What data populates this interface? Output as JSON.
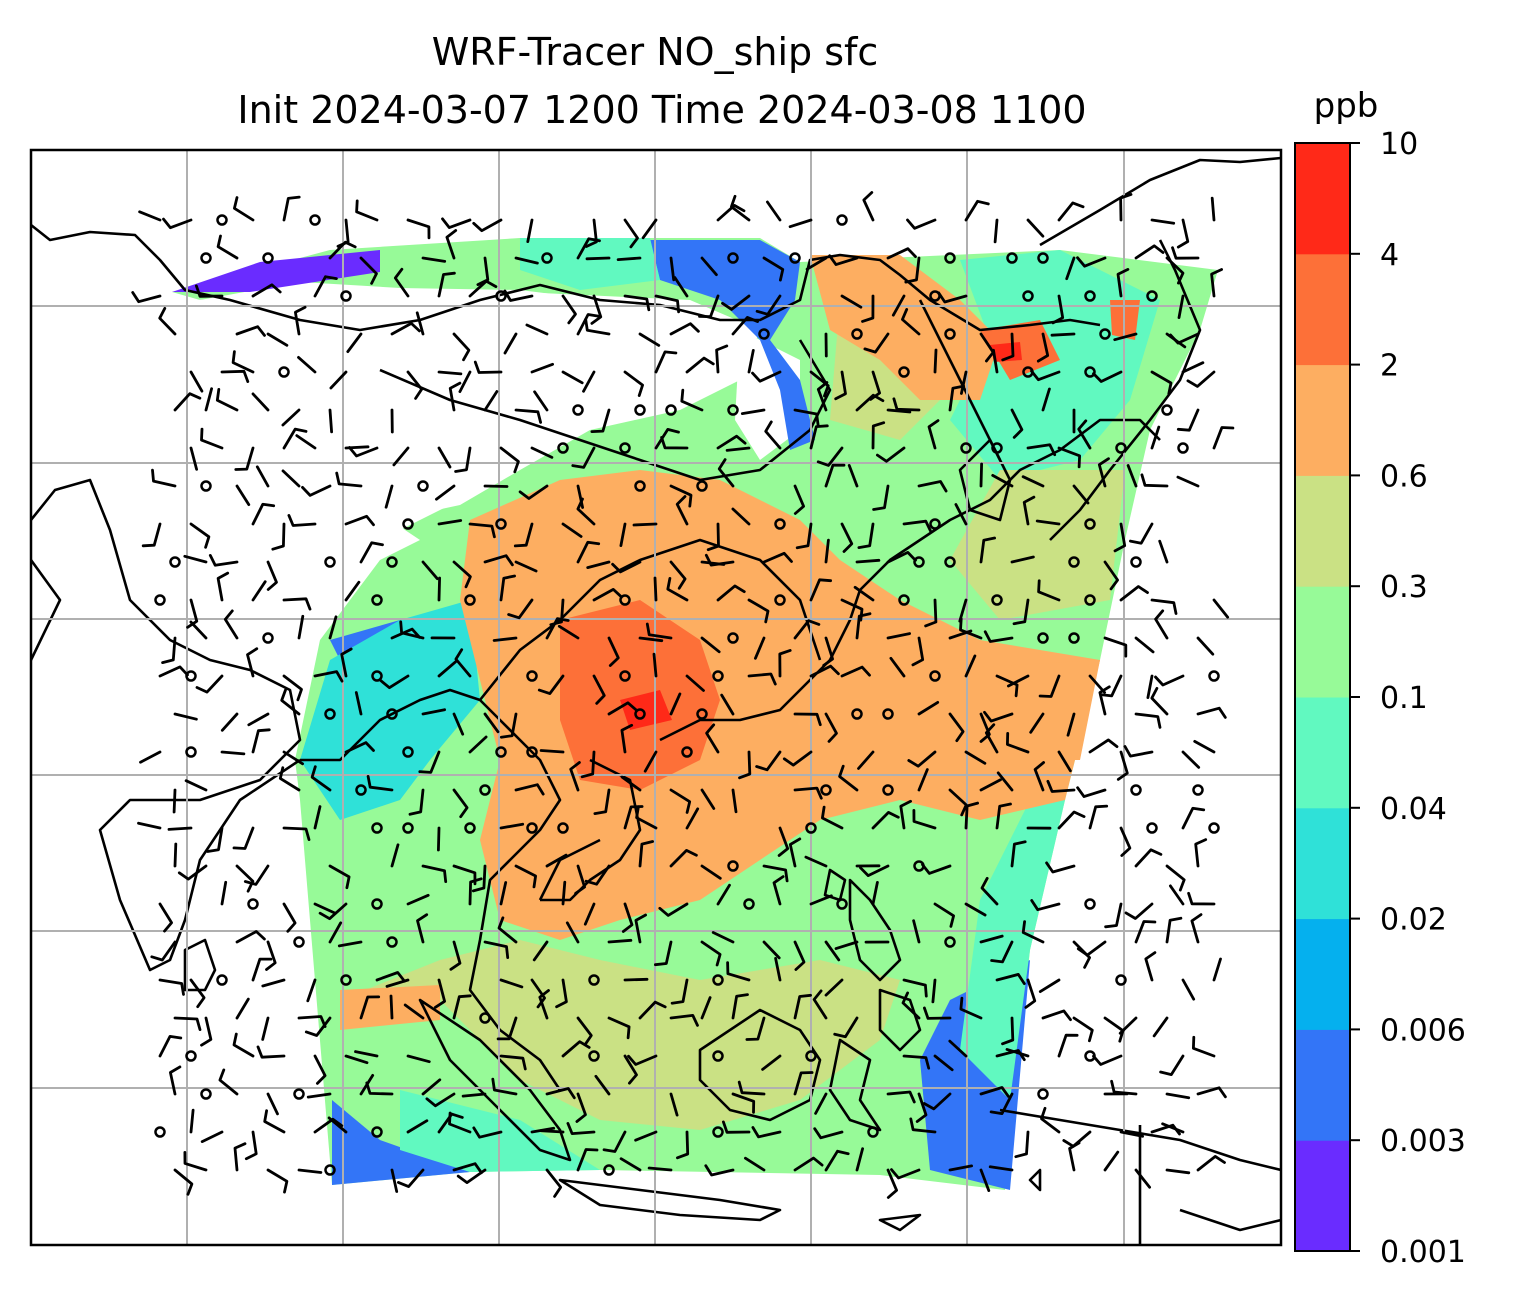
{
  "figure": {
    "title_line1": "WRF-Tracer NO_ship sfc",
    "title_line2": "Init 2024-03-07 1200 Time 2024-03-08 1100"
  },
  "colorbar": {
    "unit": "ppb",
    "levels": [
      "0.001",
      "0.003",
      "0.006",
      "0.02",
      "0.04",
      "0.1",
      "0.3",
      "0.6",
      "2",
      "4",
      "10"
    ],
    "colors": [
      "#6a2cff",
      "#3375f7",
      "#05b0ee",
      "#2fe1d8",
      "#61f9c0",
      "#97fa98",
      "#cae184",
      "#fdae61",
      "#fd7038",
      "#ff2918"
    ]
  },
  "map": {
    "land_unshaded": "#ffffff",
    "coast_color": "#000000",
    "grid_color": "#b0b0b0",
    "wind_barbs": "black wind barbs and calm circles (o) over the domain"
  }
}
